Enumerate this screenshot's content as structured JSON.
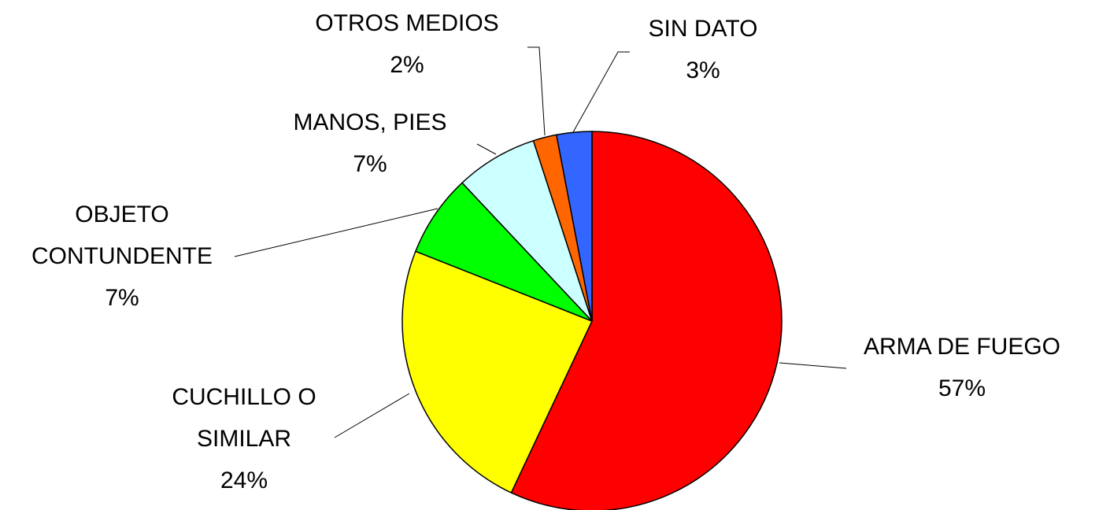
{
  "chart_data": {
    "type": "pie",
    "categories": [
      "ARMA DE FUEGO",
      "CUCHILLO O SIMILAR",
      "OBJETO CONTUNDENTE",
      "MANOS, PIES",
      "OTROS MEDIOS",
      "SIN DATO"
    ],
    "values": [
      57,
      24,
      7,
      7,
      2,
      3
    ],
    "value_labels": [
      "57%",
      "24%",
      "7%",
      "7%",
      "2%",
      "3%"
    ],
    "colors": [
      "#ff0000",
      "#ffff00",
      "#00ff00",
      "#ccffff",
      "#ff6600",
      "#3366ff"
    ]
  }
}
